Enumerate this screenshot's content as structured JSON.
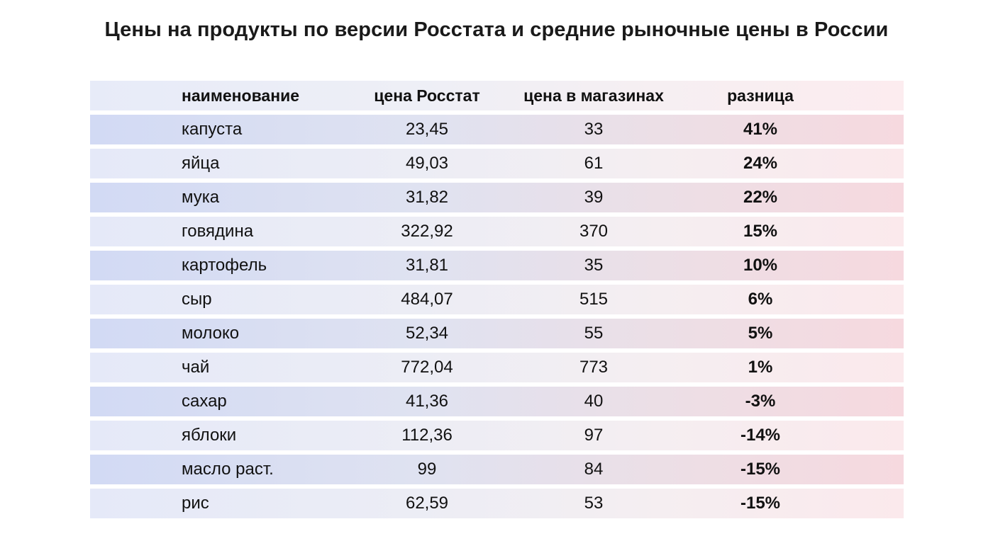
{
  "chart_data": {
    "type": "table",
    "title": "Цены на продукты по версии Росстата и средние рыночные цены в России",
    "columns": [
      "наименование",
      "цена Росстат",
      "цена в магазинах",
      "разница"
    ],
    "rows": [
      [
        "капуста",
        "23,45",
        "33",
        "41%"
      ],
      [
        "яйца",
        "49,03",
        "61",
        "24%"
      ],
      [
        "мука",
        "31,82",
        "39",
        "22%"
      ],
      [
        "говядина",
        "322,92",
        "370",
        "15%"
      ],
      [
        "картофель",
        "31,81",
        "35",
        "10%"
      ],
      [
        "сыр",
        "484,07",
        "515",
        "6%"
      ],
      [
        "молоко",
        "52,34",
        "55",
        "5%"
      ],
      [
        "чай",
        "772,04",
        "773",
        "1%"
      ],
      [
        "сахар",
        "41,36",
        "40",
        "-3%"
      ],
      [
        "яблоки",
        "112,36",
        "97",
        "-14%"
      ],
      [
        "масло раст.",
        "99",
        "84",
        "-15%"
      ],
      [
        "рис",
        "62,59",
        "53",
        "-15%"
      ]
    ]
  },
  "colors": {
    "row_dark_left": "#d2daf4",
    "row_dark_right": "#f6d9df",
    "row_light_left": "#e5e9f8",
    "row_light_right": "#fbe9ec"
  }
}
